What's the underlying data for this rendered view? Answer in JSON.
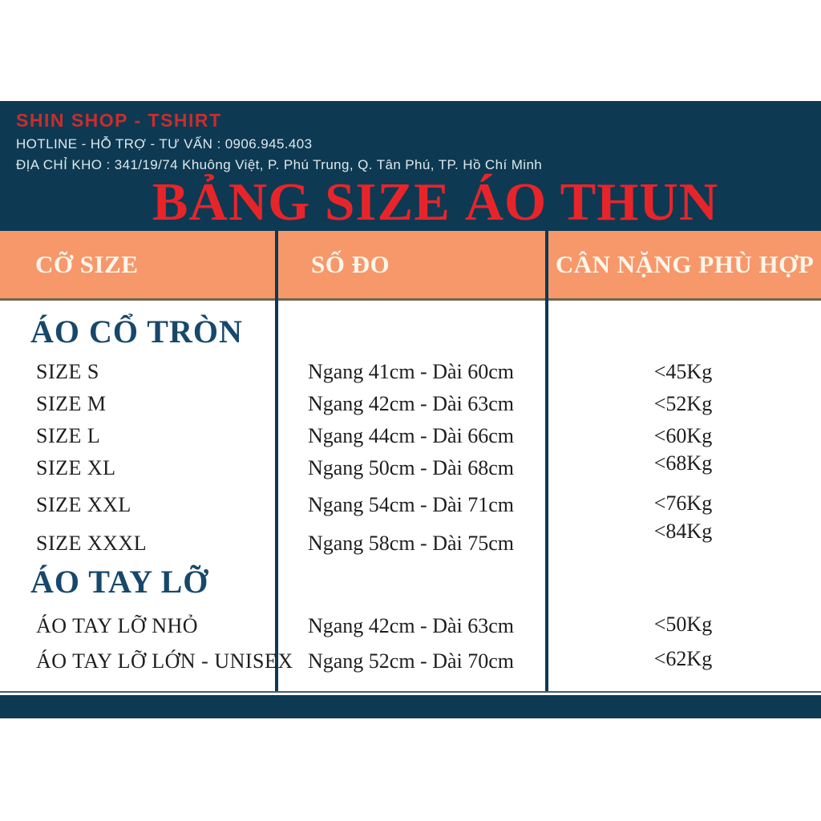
{
  "header": {
    "shop_name": "SHIN SHOP - TSHIRT",
    "hotline": "HOTLINE - HỖ TRỢ - TƯ VẤN : 0906.945.403",
    "address": "ĐỊA CHỈ KHO : 341/19/74 Khuông Việt, P. Phú Trung, Q. Tân Phú, TP. Hồ Chí Minh",
    "title": "BẢNG SIZE ÁO THUN"
  },
  "table": {
    "columns": [
      "CỠ SIZE",
      "SỐ ĐO",
      "CÂN NẶNG PHÙ HỢP"
    ],
    "sections": [
      {
        "title": "ÁO CỔ TRÒN",
        "rows": [
          {
            "size": "SIZE S",
            "measure": "Ngang 41cm - Dài 60cm",
            "weight": "<45Kg"
          },
          {
            "size": "SIZE M",
            "measure": "Ngang 42cm - Dài 63cm",
            "weight": "<52Kg"
          },
          {
            "size": "SIZE L",
            "measure": "Ngang 44cm - Dài 66cm",
            "weight": "<60Kg"
          },
          {
            "size": "SIZE XL",
            "measure": "Ngang 50cm - Dài 68cm",
            "weight": "<68Kg"
          },
          {
            "size": "SIZE XXL",
            "measure": "Ngang 54cm - Dài 71cm",
            "weight": "<76Kg"
          },
          {
            "size": "SIZE XXXL",
            "measure": "Ngang 58cm - Dài 75cm",
            "weight": "<84Kg"
          }
        ]
      },
      {
        "title": "ÁO TAY LỠ",
        "rows": [
          {
            "size": "ÁO TAY LỠ NHỎ",
            "measure": "Ngang 42cm - Dài 63cm",
            "weight": "<50Kg"
          },
          {
            "size": "ÁO TAY LỠ LỚN - UNISEX",
            "measure": "Ngang 52cm - Dài 70cm",
            "weight": "<62Kg"
          }
        ]
      }
    ]
  },
  "colors": {
    "navy": "#0d3a52",
    "orange": "#f7986b",
    "title_red": "#e8242b",
    "shop_red": "#c92d2e"
  }
}
